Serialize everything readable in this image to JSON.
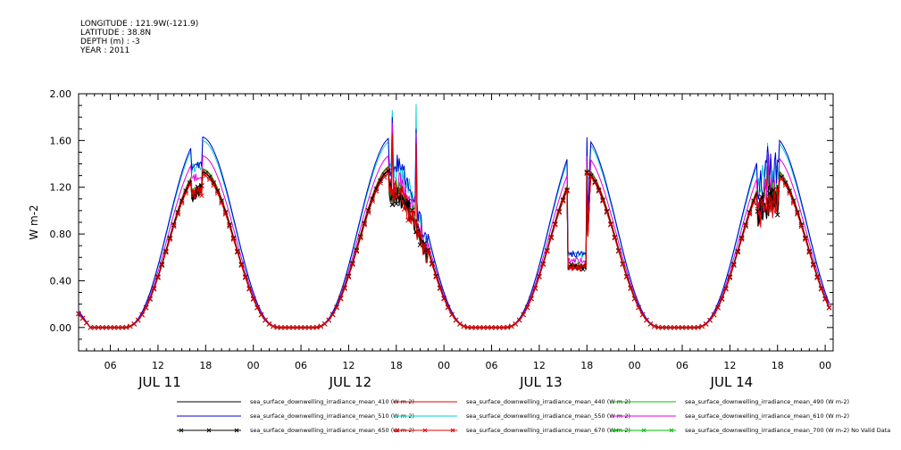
{
  "header": {
    "longitude": "LONGITUDE : 121.9W(-121.9)",
    "latitude": "LATITUDE : 38.8N",
    "depth": "DEPTH (m) : -3",
    "year": "YEAR : 2011"
  },
  "chart_data": {
    "type": "line",
    "title": "",
    "xlabel": "",
    "ylabel": "W m-2",
    "ylim": [
      -0.2,
      2.0
    ],
    "xlim_hours": [
      2,
      97
    ],
    "yticks": [
      "2.00",
      "1.60",
      "1.20",
      "0.80",
      "0.40",
      "0.00"
    ],
    "xtick_labels": [
      "06",
      "12",
      "18",
      "00",
      "06",
      "12",
      "18",
      "00",
      "06",
      "12",
      "18",
      "00",
      "06",
      "12",
      "18",
      "00"
    ],
    "day_labels": [
      "JUL 11",
      "JUL 12",
      "JUL 13",
      "JUL 14"
    ],
    "grid": false,
    "legend_position": "bottom",
    "series": [
      {
        "name": "sea_surface_downwelling_irradiance_mean_410 (W m-2)",
        "color": "#000000",
        "marker": "none",
        "day_peaks": [
          1.33,
          1.36,
          1.35,
          1.33
        ]
      },
      {
        "name": "sea_surface_downwelling_irradiance_mean_440 (W m-2)",
        "color": "#e00000",
        "marker": "none",
        "day_peaks": [
          1.35,
          1.38,
          1.37,
          1.35
        ]
      },
      {
        "name": "sea_surface_downwelling_irradiance_mean_490 (W m-2)",
        "color": "#00c000",
        "marker": "none",
        "day_peaks": [
          1.36,
          1.39,
          1.38,
          1.36
        ]
      },
      {
        "name": "sea_surface_downwelling_irradiance_mean_510 (W m-2)",
        "color": "#0000d0",
        "marker": "none",
        "day_peaks": [
          1.63,
          1.63,
          1.64,
          1.63
        ]
      },
      {
        "name": "sea_surface_downwelling_irradiance_mean_550 (W m-2)",
        "color": "#00d0d0",
        "marker": "none",
        "day_peaks": [
          1.6,
          1.6,
          1.61,
          1.6
        ]
      },
      {
        "name": "sea_surface_downwelling_irradiance_mean_610 (W m-2)",
        "color": "#e000e0",
        "marker": "none",
        "day_peaks": [
          1.47,
          1.48,
          1.48,
          1.47
        ]
      },
      {
        "name": "sea_surface_downwelling_irradiance_mean_650 (W m-2)",
        "color": "#000000",
        "marker": "x",
        "day_peaks": [
          1.33,
          1.35,
          1.34,
          1.33
        ]
      },
      {
        "name": "sea_surface_downwelling_irradiance_mean_670 (W m-2)",
        "color": "#e00000",
        "marker": "x",
        "day_peaks": [
          1.31,
          1.33,
          1.33,
          1.31
        ]
      },
      {
        "name": "sea_surface_downwelling_irradiance_mean_700 (W m-2) No Valid Data",
        "color": "#00c000",
        "marker": "x",
        "day_peaks": []
      }
    ],
    "spikes": [
      {
        "hour": 41.5,
        "values": {
          "550": 1.86,
          "510": 1.8,
          "610": 1.75,
          "440": 1.66
        }
      },
      {
        "hour": 44.5,
        "values": {
          "550": 1.91,
          "510": 1.7,
          "610": 1.66,
          "440": 1.58
        }
      },
      {
        "hour": 88.7,
        "values": {
          "550": 1.58,
          "510": 1.55,
          "610": 1.5,
          "440": 1.38
        }
      }
    ]
  }
}
